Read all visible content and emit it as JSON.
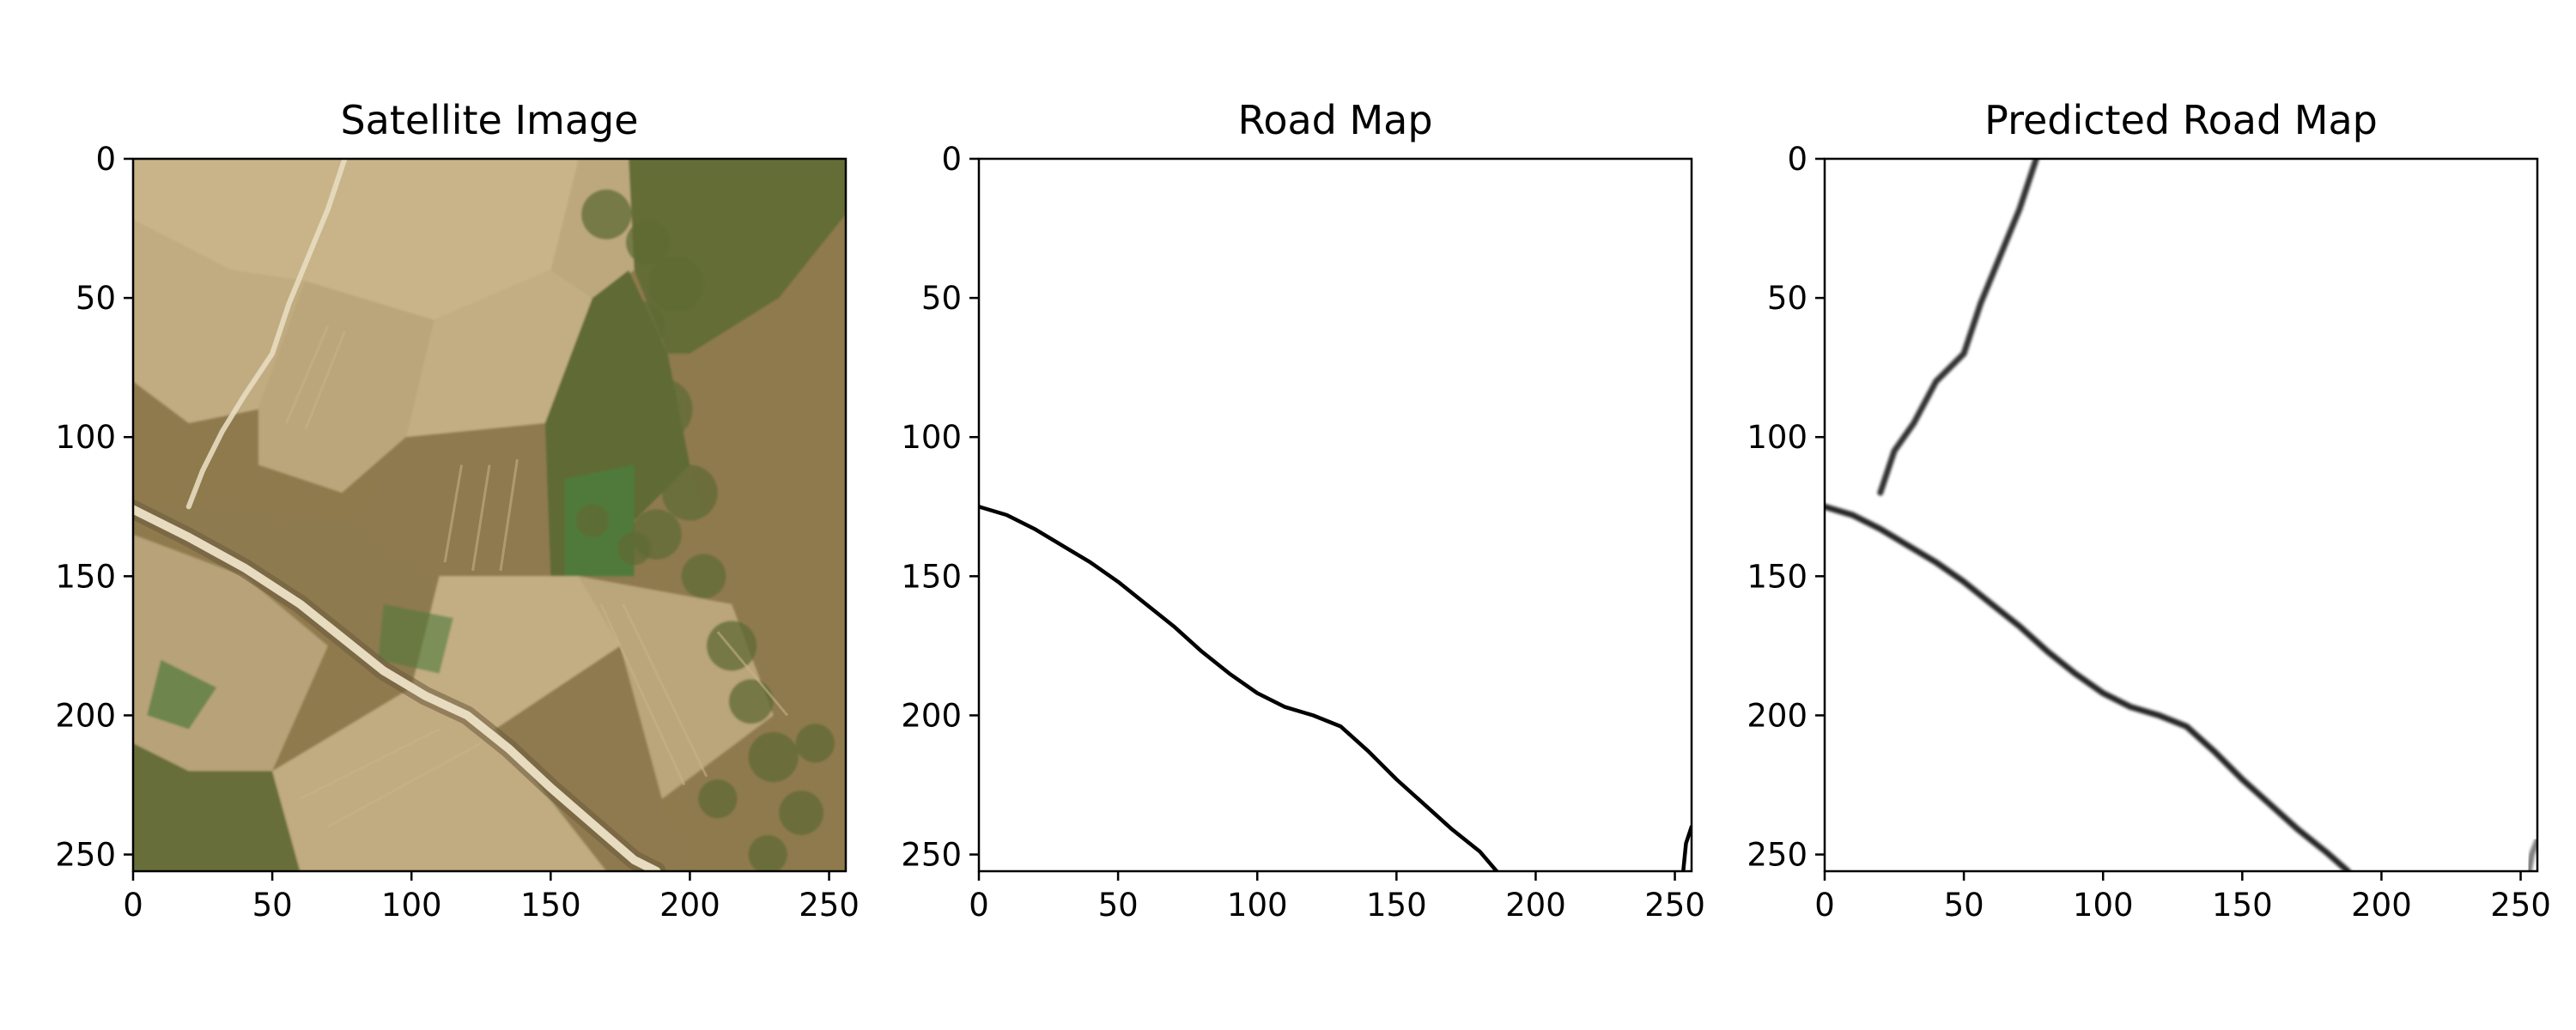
{
  "chart_data": [
    {
      "type": "image",
      "title": "Satellite Image",
      "xlim": [
        0,
        256
      ],
      "ylim": [
        256,
        0
      ],
      "xticks": [
        0,
        50,
        100,
        150,
        200,
        250
      ],
      "yticks": [
        0,
        50,
        100,
        150,
        200,
        250
      ],
      "image_content": "aerial farmland patchwork with a diagonal road",
      "road_path": [
        [
          0,
          126
        ],
        [
          20,
          136
        ],
        [
          40,
          147
        ],
        [
          60,
          160
        ],
        [
          75,
          172
        ],
        [
          90,
          184
        ],
        [
          105,
          193
        ],
        [
          120,
          200
        ],
        [
          135,
          212
        ],
        [
          150,
          226
        ],
        [
          165,
          239
        ],
        [
          180,
          252
        ],
        [
          188,
          256
        ]
      ],
      "colors": {
        "field_light": "#c9b48a",
        "field_dark": "#8f7a4e",
        "vegetation": "#5f6b34",
        "green_field": "#4f7a3a",
        "road": "#e8dcc0"
      }
    },
    {
      "type": "image",
      "title": "Road Map",
      "xlim": [
        0,
        256
      ],
      "ylim": [
        256,
        0
      ],
      "xticks": [
        0,
        50,
        100,
        150,
        200,
        250
      ],
      "yticks": [
        0,
        50,
        100,
        150,
        200,
        250
      ],
      "roads": [
        {
          "points": [
            [
              0,
              125
            ],
            [
              10,
              128
            ],
            [
              20,
              133
            ],
            [
              30,
              139
            ],
            [
              40,
              145
            ],
            [
              50,
              152
            ],
            [
              60,
              160
            ],
            [
              70,
              168
            ],
            [
              80,
              177
            ],
            [
              90,
              185
            ],
            [
              100,
              192
            ],
            [
              110,
              197
            ],
            [
              120,
              200
            ],
            [
              130,
              204
            ],
            [
              140,
              213
            ],
            [
              150,
              223
            ],
            [
              160,
              232
            ],
            [
              170,
              241
            ],
            [
              180,
              249
            ],
            [
              186,
              256
            ]
          ]
        },
        {
          "points": [
            [
              253,
              256
            ],
            [
              254,
              246
            ],
            [
              256,
              240
            ]
          ]
        }
      ]
    },
    {
      "type": "image",
      "title": "Predicted Road Map",
      "xlim": [
        0,
        256
      ],
      "ylim": [
        256,
        0
      ],
      "xticks": [
        0,
        50,
        100,
        150,
        200,
        250
      ],
      "yticks": [
        0,
        50,
        100,
        150,
        200,
        250
      ],
      "roads": [
        {
          "points": [
            [
              0,
              125
            ],
            [
              10,
              128
            ],
            [
              20,
              133
            ],
            [
              30,
              139
            ],
            [
              40,
              145
            ],
            [
              50,
              152
            ],
            [
              60,
              160
            ],
            [
              70,
              168
            ],
            [
              80,
              177
            ],
            [
              90,
              185
            ],
            [
              100,
              192
            ],
            [
              110,
              197
            ],
            [
              120,
              200
            ],
            [
              130,
              204
            ],
            [
              140,
              213
            ],
            [
              150,
              223
            ],
            [
              160,
              232
            ],
            [
              170,
              241
            ],
            [
              180,
              249
            ],
            [
              188,
              256
            ]
          ],
          "intensity": 0.85
        },
        {
          "points": [
            [
              76,
              0
            ],
            [
              70,
              18
            ],
            [
              63,
              35
            ],
            [
              56,
              52
            ],
            [
              50,
              70
            ],
            [
              40,
              80
            ],
            [
              32,
              95
            ],
            [
              25,
              105
            ],
            [
              20,
              120
            ]
          ],
          "intensity": 0.8
        },
        {
          "points": [
            [
              253,
              256
            ],
            [
              254,
              250
            ],
            [
              256,
              245
            ]
          ],
          "intensity": 0.5
        }
      ]
    }
  ]
}
